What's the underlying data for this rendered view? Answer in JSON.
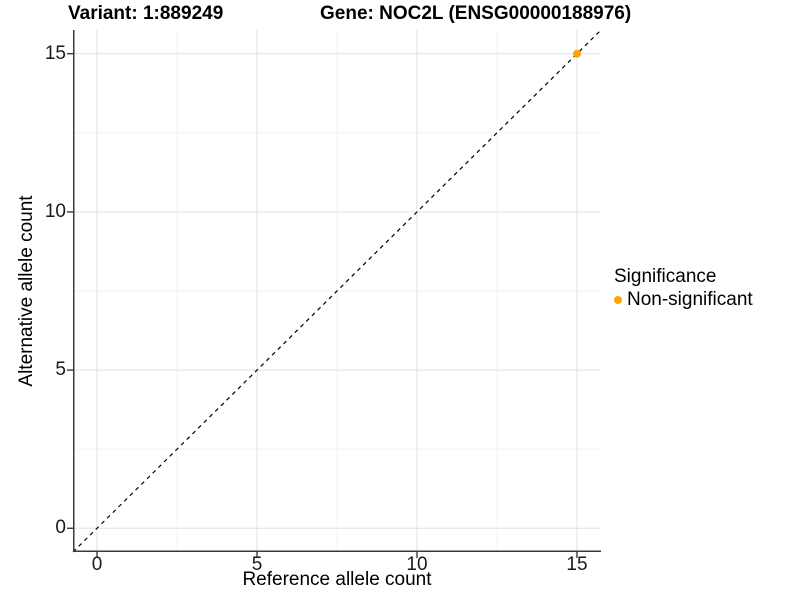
{
  "titles": {
    "left": "Variant: 1:889249",
    "right": "Gene: NOC2L (ENSG00000188976)"
  },
  "chart_data": {
    "type": "scatter",
    "title": "Variant: 1:889249    Gene: NOC2L (ENSG00000188976)",
    "xlabel": "Reference allele count",
    "ylabel": "Alternative allele count",
    "xlim": [
      -0.75,
      15.75
    ],
    "ylim": [
      -0.75,
      15.75
    ],
    "x_ticks": [
      0,
      5,
      10,
      15
    ],
    "y_ticks": [
      0,
      5,
      10,
      15
    ],
    "x_minor": [
      2.5,
      7.5,
      12.5
    ],
    "y_minor": [
      2.5,
      7.5,
      12.5
    ],
    "grid": true,
    "points": [
      {
        "x": 15,
        "y": 15,
        "series": "Non-significant"
      }
    ],
    "reference_line": {
      "slope": 1,
      "intercept": 0,
      "linestyle": "dashed",
      "color": "#000000"
    },
    "legend": {
      "title": "Significance",
      "position": "right",
      "items": [
        {
          "label": "Non-significant",
          "color": "#FFA500"
        }
      ]
    },
    "colors": {
      "point": "#FFA500",
      "grid_major": "#e4e4e4",
      "grid_minor": "#f0f0f0",
      "axis_line": "#3a3a3a",
      "tick_mark": "#3a3a3a",
      "tick_text": "#1a1a1a"
    }
  }
}
